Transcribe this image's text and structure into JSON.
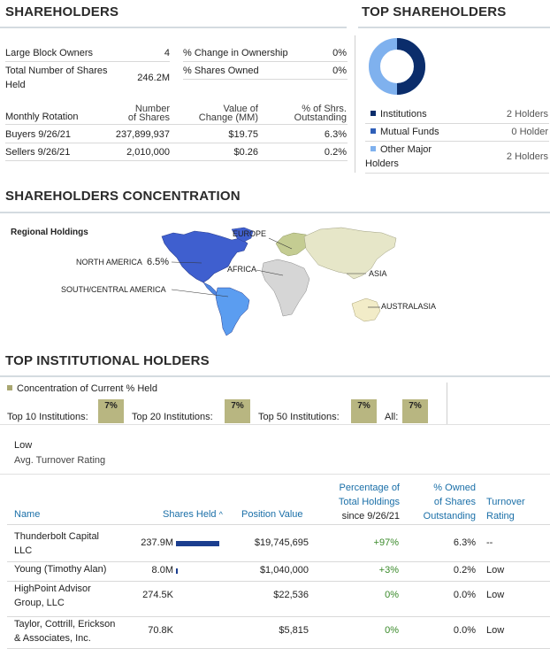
{
  "shareholders": {
    "title": "SHAREHOLDERS",
    "rows": [
      {
        "label": "Large Block Owners",
        "value": "4",
        "label2": "% Change in Ownership",
        "value2": "0%"
      },
      {
        "label": "Total Number of Shares Held",
        "label_line1": "Total Number of Shares",
        "label_line2": "Held",
        "value": "246.2M",
        "label2": "% Shares Owned",
        "value2": "0%"
      }
    ],
    "rotation": {
      "title": "Monthly Rotation",
      "col_shares": [
        "Number",
        "of Shares"
      ],
      "col_value": [
        "Value of",
        "Change (MM)"
      ],
      "col_pct": [
        "% of Shrs.",
        "Outstanding"
      ],
      "rows": [
        {
          "label": "Buyers 9/26/21",
          "shares": "237,899,937",
          "value": "$19.75",
          "pct": "6.3%"
        },
        {
          "label": "Sellers 9/26/21",
          "shares": "2,010,000",
          "value": "$0.26",
          "pct": "0.2%"
        }
      ]
    }
  },
  "top_shareholders": {
    "title": "TOP SHAREHOLDERS",
    "legend": [
      {
        "label": "Institutions",
        "value": "2 Holders",
        "color": "#0b2d6b"
      },
      {
        "label": "Mutual Funds",
        "value": "0 Holder",
        "color": "#2f5fb8"
      },
      {
        "label_line1": "Other Major",
        "label_line2": "Holders",
        "value": "2 Holders",
        "color": "#7fb1ee"
      }
    ],
    "donut": {
      "institutions_fraction": 0.5,
      "other_fraction": 0.5
    }
  },
  "concentration": {
    "title": "SHAREHOLDERS CONCENTRATION",
    "map_title": "Regional Holdings",
    "regions": {
      "north_america": "NORTH AMERICA",
      "north_america_pct": "6.5%",
      "europe": "EUROPE",
      "africa": "AFRICA",
      "asia": "ASIA",
      "south_central_america": "SOUTH/CENTRAL AMERICA",
      "australasia": "AUSTRALASIA"
    }
  },
  "institutional": {
    "title": "TOP INSTITUTIONAL HOLDERS",
    "concentration_label": "Concentration of Current % Held",
    "buckets": [
      {
        "label": "Top 10 Institutions:",
        "value": "7%"
      },
      {
        "label": "Top 20 Institutions:",
        "value": "7%"
      },
      {
        "label": "Top 50 Institutions:",
        "value": "7%"
      },
      {
        "label": "All:",
        "value": "7%"
      }
    ],
    "turnover": {
      "value": "Low",
      "label": "Avg. Turnover Rating"
    },
    "columns": {
      "name": "Name",
      "shares": "Shares Held",
      "sort_arrow": "^",
      "position": "Position Value",
      "pct_change": [
        "Percentage of",
        "Total Holdings",
        "since 9/26/21"
      ],
      "pct_owned": [
        "% Owned",
        "of Shares",
        "Outstanding"
      ],
      "turnover": [
        "Turnover",
        "Rating"
      ]
    },
    "rows": [
      {
        "name1": "Thunderbolt Capital",
        "name2": "LLC",
        "shares": "237.9M",
        "share_fraction": 1.0,
        "position": "$19,745,695",
        "change": "+97%",
        "owned": "6.3%",
        "turnover": "--"
      },
      {
        "name1": "Young (Timothy Alan)",
        "name2": "",
        "shares": "8.0M",
        "share_fraction": 0.034,
        "position": "$1,040,000",
        "change": "+3%",
        "owned": "0.2%",
        "turnover": "Low"
      },
      {
        "name1": "HighPoint Advisor",
        "name2": "Group, LLC",
        "shares": "274.5K",
        "share_fraction": 0.0,
        "position": "$22,536",
        "change": "0%",
        "owned": "0.0%",
        "turnover": "Low"
      },
      {
        "name1": "Taylor, Cottrill, Erickson",
        "name2": "& Associates, Inc.",
        "shares": "70.8K",
        "share_fraction": 0.0,
        "position": "$5,815",
        "change": "0%",
        "owned": "0.0%",
        "turnover": "Low"
      }
    ]
  }
}
